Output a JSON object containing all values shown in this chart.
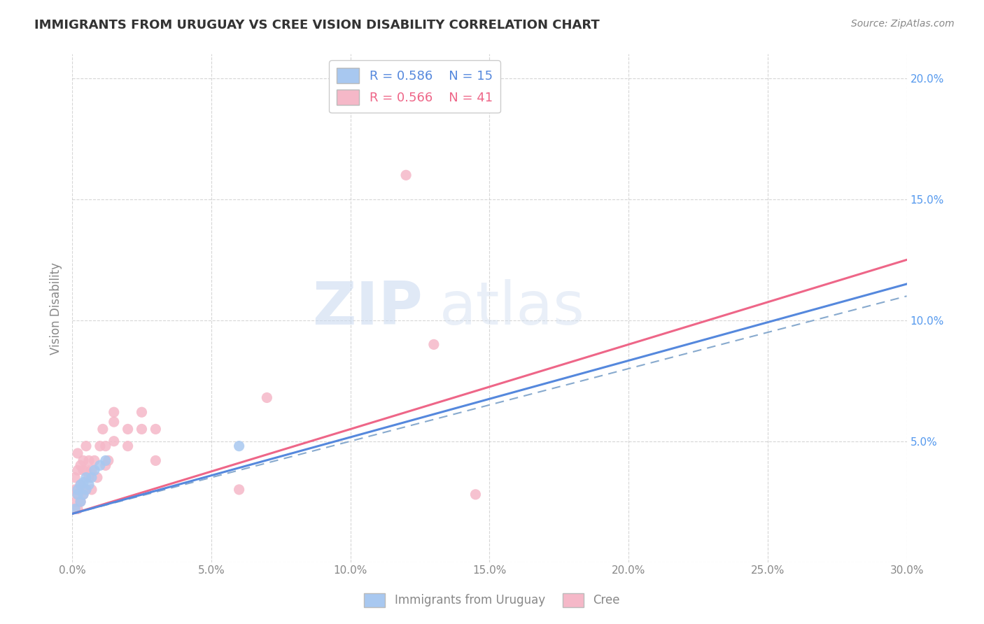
{
  "title": "IMMIGRANTS FROM URUGUAY VS CREE VISION DISABILITY CORRELATION CHART",
  "source_text": "Source: ZipAtlas.com",
  "ylabel": "Vision Disability",
  "xlim": [
    0.0,
    0.3
  ],
  "ylim": [
    0.0,
    0.21
  ],
  "ytick_positions": [
    0.0,
    0.05,
    0.1,
    0.15,
    0.2
  ],
  "ytick_labels": [
    "",
    "5.0%",
    "10.0%",
    "15.0%",
    "20.0%"
  ],
  "xtick_positions": [
    0.0,
    0.05,
    0.1,
    0.15,
    0.2,
    0.25,
    0.3
  ],
  "xtick_display": [
    "0.0%",
    "5.0%",
    "10.0%",
    "15.0%",
    "20.0%",
    "25.0%",
    "30.0%"
  ],
  "watermark_zip": "ZIP",
  "watermark_atlas": "atlas",
  "legend_blue_r": "R = 0.586",
  "legend_blue_n": "N = 15",
  "legend_pink_r": "R = 0.566",
  "legend_pink_n": "N = 41",
  "blue_color": "#A8C8F0",
  "pink_color": "#F5B8C8",
  "blue_line_color": "#5588DD",
  "pink_line_color": "#EE6688",
  "blue_line_style": "solid",
  "pink_line_style": "solid",
  "blue_dash_color": "#88AACE",
  "blue_scatter": [
    [
      0.001,
      0.022
    ],
    [
      0.002,
      0.028
    ],
    [
      0.002,
      0.03
    ],
    [
      0.003,
      0.025
    ],
    [
      0.003,
      0.032
    ],
    [
      0.004,
      0.028
    ],
    [
      0.004,
      0.033
    ],
    [
      0.005,
      0.03
    ],
    [
      0.005,
      0.035
    ],
    [
      0.006,
      0.032
    ],
    [
      0.007,
      0.035
    ],
    [
      0.008,
      0.038
    ],
    [
      0.01,
      0.04
    ],
    [
      0.012,
      0.042
    ],
    [
      0.06,
      0.048
    ]
  ],
  "pink_scatter": [
    [
      0.001,
      0.025
    ],
    [
      0.001,
      0.03
    ],
    [
      0.001,
      0.035
    ],
    [
      0.002,
      0.022
    ],
    [
      0.002,
      0.028
    ],
    [
      0.002,
      0.038
    ],
    [
      0.002,
      0.045
    ],
    [
      0.003,
      0.025
    ],
    [
      0.003,
      0.032
    ],
    [
      0.003,
      0.04
    ],
    [
      0.004,
      0.028
    ],
    [
      0.004,
      0.038
    ],
    [
      0.004,
      0.042
    ],
    [
      0.005,
      0.03
    ],
    [
      0.005,
      0.038
    ],
    [
      0.005,
      0.048
    ],
    [
      0.006,
      0.035
    ],
    [
      0.006,
      0.042
    ],
    [
      0.007,
      0.03
    ],
    [
      0.007,
      0.038
    ],
    [
      0.008,
      0.042
    ],
    [
      0.009,
      0.035
    ],
    [
      0.01,
      0.048
    ],
    [
      0.011,
      0.055
    ],
    [
      0.012,
      0.04
    ],
    [
      0.012,
      0.048
    ],
    [
      0.013,
      0.042
    ],
    [
      0.015,
      0.05
    ],
    [
      0.015,
      0.058
    ],
    [
      0.015,
      0.062
    ],
    [
      0.02,
      0.048
    ],
    [
      0.02,
      0.055
    ],
    [
      0.025,
      0.055
    ],
    [
      0.025,
      0.062
    ],
    [
      0.03,
      0.042
    ],
    [
      0.03,
      0.055
    ],
    [
      0.06,
      0.03
    ],
    [
      0.07,
      0.068
    ],
    [
      0.12,
      0.16
    ],
    [
      0.13,
      0.09
    ],
    [
      0.145,
      0.028
    ]
  ],
  "blue_line_endpoints": [
    [
      0.0,
      0.02
    ],
    [
      0.3,
      0.115
    ]
  ],
  "pink_line_endpoints": [
    [
      0.0,
      0.02
    ],
    [
      0.3,
      0.125
    ]
  ],
  "blue_dash_endpoints": [
    [
      0.0,
      0.02
    ],
    [
      0.3,
      0.11
    ]
  ],
  "grid_color": "#CCCCCC",
  "background_color": "#FFFFFF",
  "title_color": "#333333",
  "axis_label_color": "#888888"
}
